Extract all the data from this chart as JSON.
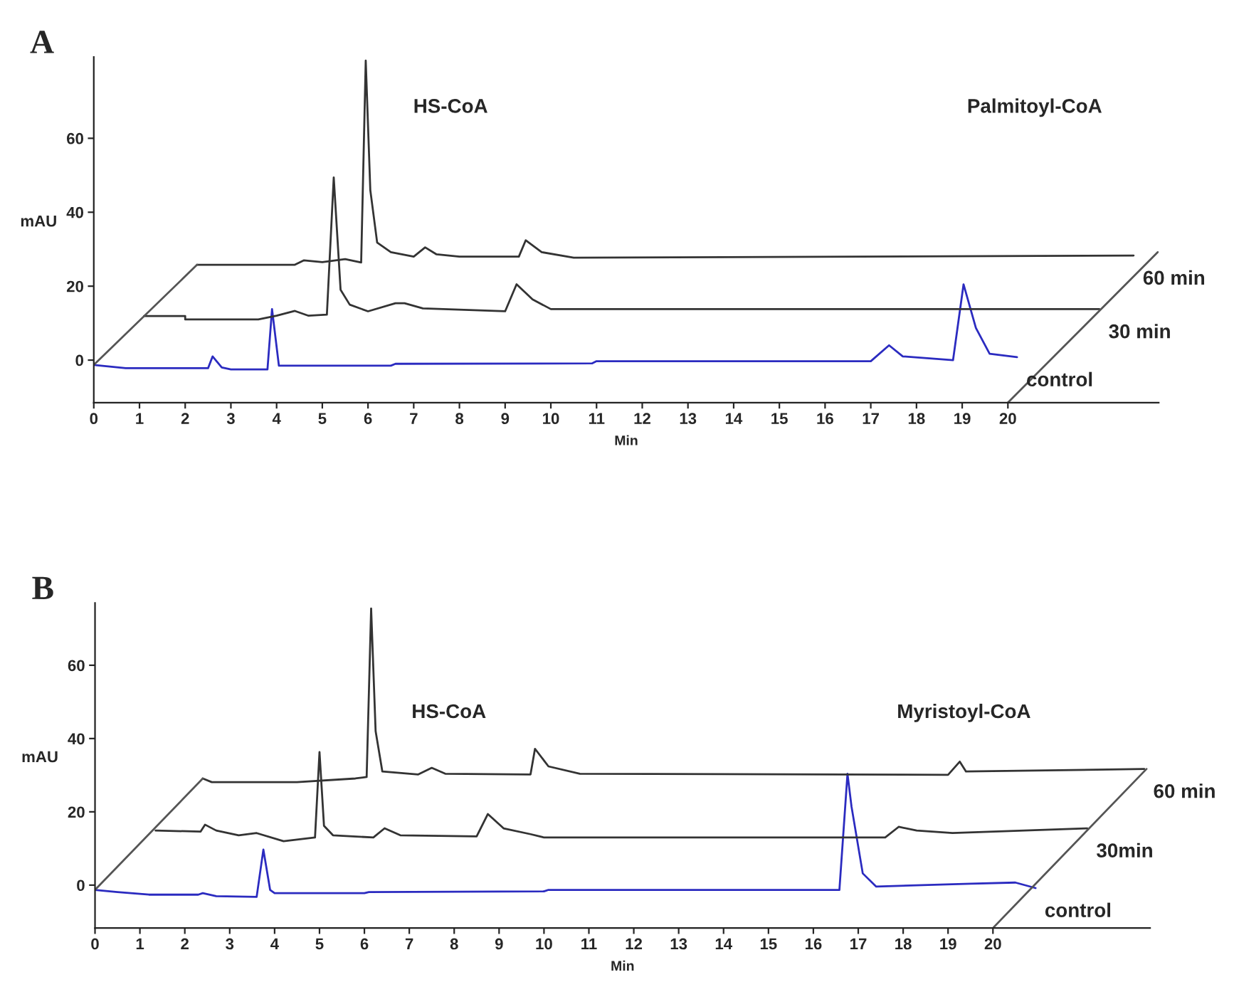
{
  "chart_data": [
    {
      "type": "line",
      "title": "A",
      "xlabel": "Min",
      "ylabel": "mAU",
      "xlim": [
        0,
        23.3
      ],
      "ylim": [
        -11.5,
        82
      ],
      "xticks": [
        0,
        1,
        2,
        3,
        4,
        5,
        6,
        7,
        8,
        9,
        10,
        11,
        12,
        13,
        14,
        15,
        16,
        17,
        18,
        19,
        20
      ],
      "yticks": [
        0,
        20,
        40,
        60
      ],
      "grid": false,
      "legend": false,
      "marker": "none",
      "line_style": "solid",
      "annotations": [
        "HS-CoA",
        "Palmitoyl-CoA"
      ],
      "series": [
        {
          "name": "control",
          "color": "#2b2bc0",
          "x": [
            0,
            0.7,
            2.5,
            2.6,
            2.8,
            3.0,
            3.8,
            3.9,
            4.05,
            6.5,
            6.6,
            10.9,
            11.0,
            17.0,
            17.4,
            17.7,
            18.8,
            19.03,
            19.3,
            19.6,
            20.2
          ],
          "values": [
            -1.3,
            -2.2,
            -2.2,
            1.0,
            -2.0,
            -2.5,
            -2.5,
            13.8,
            -1.5,
            -1.5,
            -1.0,
            -0.9,
            -0.3,
            -0.3,
            4.0,
            1.0,
            0,
            20.5,
            8.7,
            1.7,
            0.8
          ]
        },
        {
          "name": "30 min",
          "color": "#333333",
          "x": [
            1.1,
            2.0,
            2.0,
            3.6,
            4.0,
            4.4,
            4.7,
            5.1,
            5.25,
            5.4,
            5.6,
            6.0,
            6.6,
            6.8,
            7.2,
            9.0,
            9.25,
            9.6,
            10.0,
            22.0
          ],
          "values": [
            11.9,
            11.9,
            11.0,
            11.0,
            12.0,
            13.3,
            12.0,
            12.3,
            49.4,
            19.0,
            15.0,
            13.2,
            15.4,
            15.4,
            14.0,
            13.2,
            20.5,
            16.4,
            13.8,
            13.8
          ]
        },
        {
          "name": "60 min",
          "color": "#333333",
          "x": [
            2.26,
            4.4,
            4.6,
            5.0,
            5.5,
            5.85,
            5.95,
            6.05,
            6.2,
            6.5,
            7.0,
            7.25,
            7.5,
            8.0,
            9.3,
            9.45,
            9.8,
            10.5,
            22.75
          ],
          "values": [
            25.8,
            25.8,
            27.0,
            26.5,
            27.3,
            26.4,
            81,
            46,
            31.8,
            29.2,
            28.0,
            30.5,
            28.6,
            28.0,
            28.0,
            32.4,
            29.2,
            27.7,
            28.3
          ]
        },
        {
          "color": "#555555",
          "x": [
            0,
            2.26
          ],
          "values": [
            -1.3,
            25.8
          ]
        },
        {
          "color": "#555555",
          "x": [
            20,
            23.28
          ],
          "values": [
            -11.5,
            29.2
          ]
        }
      ]
    },
    {
      "type": "line",
      "title": "B",
      "xlabel": "Min",
      "ylabel": "mAU",
      "xlim": [
        0,
        23.5
      ],
      "ylim": [
        -11.7,
        77
      ],
      "xticks": [
        0,
        1,
        2,
        3,
        4,
        5,
        6,
        7,
        8,
        9,
        10,
        11,
        12,
        13,
        14,
        15,
        16,
        17,
        18,
        19,
        20
      ],
      "yticks": [
        0,
        20,
        40,
        60
      ],
      "grid": false,
      "legend": false,
      "marker": "none",
      "line_style": "solid",
      "annotations": [
        "HS-CoA",
        "Myristoyl-CoA"
      ],
      "series": [
        {
          "name": "control",
          "color": "#2b2bc0",
          "x": [
            0,
            0.5,
            1.2,
            2.3,
            2.4,
            2.7,
            3.6,
            3.75,
            3.9,
            4.0,
            6.0,
            6.1,
            10.0,
            10.1,
            16.58,
            16.76,
            16.85,
            17.1,
            17.4,
            19.5,
            20.5,
            20.95
          ],
          "values": [
            -1.3,
            -1.9,
            -2.6,
            -2.6,
            -2.2,
            -3.0,
            -3.2,
            9.7,
            -1.3,
            -2.2,
            -2.2,
            -1.9,
            -1.7,
            -1.3,
            -1.3,
            30.4,
            21.4,
            3.2,
            -0.4,
            0.4,
            0.7,
            -0.8
          ]
        },
        {
          "name": "30min",
          "color": "#333333",
          "x": [
            1.35,
            2.35,
            2.45,
            2.7,
            3.2,
            3.6,
            4.2,
            4.9,
            5.0,
            5.1,
            5.3,
            6.2,
            6.45,
            6.8,
            8.5,
            8.75,
            9.1,
            9.7,
            10.0,
            17.6,
            17.9,
            18.3,
            19.1,
            22.1
          ],
          "values": [
            14.9,
            14.6,
            16.5,
            14.9,
            13.6,
            14.2,
            12.0,
            13.0,
            36.3,
            16.2,
            13.6,
            13.0,
            15.5,
            13.6,
            13.3,
            19.4,
            15.5,
            13.9,
            13.0,
            13.0,
            15.9,
            14.9,
            14.2,
            15.5
          ]
        },
        {
          "name": "60 min",
          "color": "#333333",
          "x": [
            2.4,
            2.6,
            4.5,
            5.8,
            6.05,
            6.15,
            6.25,
            6.4,
            7.2,
            7.5,
            7.8,
            9.7,
            9.8,
            10.1,
            10.8,
            19.0,
            19.26,
            19.4,
            23.37
          ],
          "values": [
            29.1,
            28.1,
            28.1,
            29.1,
            29.5,
            75.5,
            42.0,
            31.0,
            30.2,
            32.0,
            30.4,
            30.2,
            37.2,
            32.4,
            30.4,
            30.1,
            33.7,
            31.0,
            31.7
          ]
        },
        {
          "color": "#555555",
          "x": [
            0,
            2.4
          ],
          "values": [
            -1.3,
            29.1
          ]
        },
        {
          "color": "#555555",
          "x": [
            20,
            23.42
          ],
          "values": [
            -11.7,
            31.7
          ]
        }
      ]
    }
  ]
}
